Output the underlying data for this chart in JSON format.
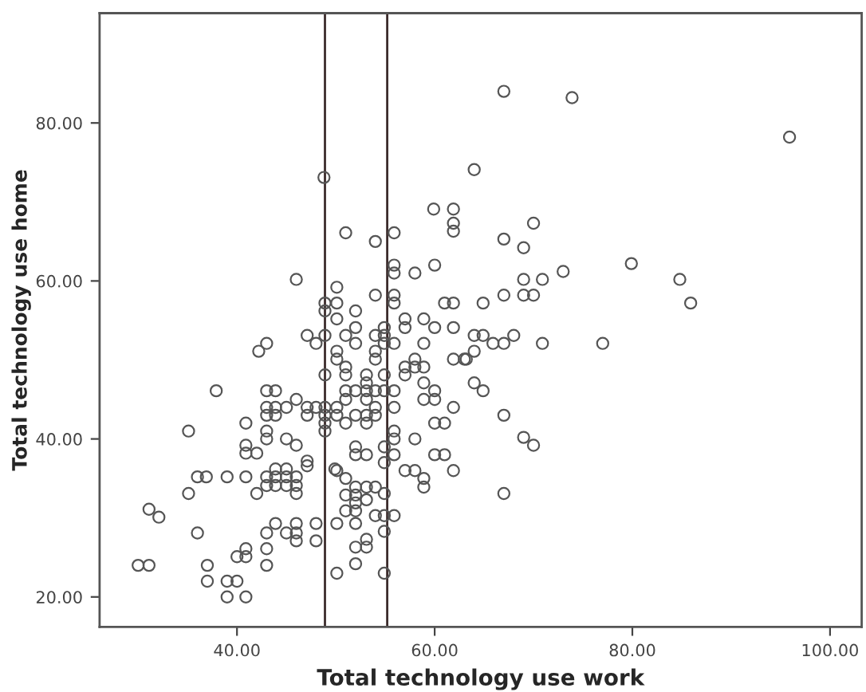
{
  "chart_data": {
    "type": "scatter",
    "xlabel": "Total technology use work",
    "ylabel": "Total technology use home",
    "xlim": [
      26.1,
      103.2
    ],
    "ylim": [
      16.2,
      93.9
    ],
    "xticks": [
      {
        "value": 40,
        "label": "40.00"
      },
      {
        "value": 60,
        "label": "60.00"
      },
      {
        "value": 80,
        "label": "80.00"
      },
      {
        "value": 100,
        "label": "100.00"
      }
    ],
    "yticks": [
      {
        "value": 20,
        "label": "20.00"
      },
      {
        "value": 40,
        "label": "40.00"
      },
      {
        "value": 60,
        "label": "60.00"
      },
      {
        "value": 80,
        "label": "80.00"
      }
    ],
    "grid": false,
    "legend": false,
    "marker": "circle",
    "ref_lines": [
      {
        "axis": "x",
        "value": 48.9,
        "color": "#3a2a2a"
      },
      {
        "axis": "x",
        "value": 55.2,
        "color": "#3a2a2a"
      }
    ],
    "series": [
      {
        "color": "#555555",
        "x": [
          48.8,
          67.0,
          73.9,
          95.9,
          64.0,
          51.0,
          59.9,
          61.9,
          61.9,
          61.9,
          54.0,
          55.9,
          46.0,
          55.9,
          55.9,
          58.0,
          60.0,
          50.1,
          48.9,
          48.9,
          50.1,
          52.0,
          54.0,
          55.9,
          55.9,
          61.0,
          61.9,
          70.0,
          67.0,
          69.0,
          69.0,
          70.9,
          73.0,
          79.9,
          84.8,
          85.9,
          64.9,
          67.0,
          69.0,
          70.0,
          64.0,
          64.9,
          65.9,
          67.0,
          68.0,
          70.9,
          77.0,
          64.0,
          63.2,
          64.0,
          64.9,
          67.0,
          69.0,
          70.0,
          67.0,
          43.0,
          42.2,
          47.1,
          48.0,
          48.9,
          37.9,
          43.0,
          43.9,
          43.0,
          43.9,
          43.0,
          43.9,
          46.0,
          45.0,
          47.1,
          47.1,
          48.0,
          48.9,
          48.9,
          48.9,
          48.9,
          35.1,
          40.9,
          43.0,
          43.0,
          40.9,
          40.9,
          42.0,
          45.0,
          46.0,
          47.1,
          36.0,
          36.9,
          39.0,
          40.9,
          43.0,
          43.9,
          45.0,
          46.0,
          43.0,
          43.9,
          45.0,
          46.0,
          46.0,
          43.9,
          45.0,
          42.0,
          35.1,
          31.1,
          32.1,
          36.0,
          43.0,
          43.9,
          45.0,
          46.0,
          46.0,
          46.0,
          43.0,
          40.9,
          40.9,
          40.0,
          30.0,
          31.1,
          37.0,
          43.0,
          37.0,
          39.0,
          40.0,
          39.0,
          40.9,
          48.0,
          48.0,
          50.1,
          50.1,
          52.0,
          49.9,
          50.1,
          52.0,
          57.0,
          57.0,
          58.9,
          60.0,
          61.9,
          51.0,
          52.0,
          54.0,
          54.9,
          54.9,
          54.9,
          55.9,
          58.9,
          50.1,
          50.1,
          54.0,
          54.0,
          51.0,
          51.0,
          57.0,
          58.0,
          58.0,
          58.9,
          57.0,
          61.9,
          63.0,
          48.9,
          53.1,
          54.9,
          58.9,
          51.0,
          52.0,
          53.1,
          53.1,
          54.0,
          54.9,
          55.9,
          51.0,
          53.1,
          58.9,
          60.0,
          60.0,
          50.1,
          50.1,
          51.0,
          52.0,
          53.1,
          53.1,
          54.0,
          54.0,
          55.9,
          61.9,
          60.0,
          61.0,
          55.9,
          55.9,
          58.0,
          52.0,
          52.0,
          53.1,
          54.9,
          54.9,
          55.9,
          57.0,
          58.0,
          58.9,
          58.9,
          60.0,
          61.0,
          61.9,
          50.1,
          51.0,
          52.0,
          53.1,
          54.0,
          52.0,
          52.0,
          51.0,
          51.0,
          52.0,
          53.1,
          54.0,
          54.9,
          55.9,
          54.9,
          53.1,
          53.1,
          52.0,
          52.0,
          54.9,
          54.9,
          47.1
        ],
        "values": [
          73.1,
          84.0,
          83.2,
          78.2,
          74.1,
          66.1,
          69.1,
          69.1,
          67.3,
          66.3,
          65.0,
          66.1,
          60.2,
          62.0,
          61.0,
          61.0,
          62.0,
          59.2,
          57.2,
          56.2,
          57.2,
          56.2,
          58.2,
          58.2,
          57.2,
          57.2,
          57.2,
          67.3,
          65.3,
          64.2,
          60.2,
          60.2,
          61.2,
          62.2,
          60.2,
          57.2,
          57.2,
          58.2,
          58.2,
          58.2,
          53.1,
          53.1,
          52.1,
          52.1,
          53.1,
          52.1,
          52.1,
          51.1,
          50.1,
          47.1,
          46.1,
          43.0,
          40.2,
          39.2,
          33.1,
          52.1,
          51.1,
          53.1,
          52.1,
          53.1,
          46.1,
          46.1,
          46.1,
          44.0,
          44.0,
          43.0,
          43.0,
          45.0,
          44.0,
          44.0,
          43.0,
          44.0,
          44.0,
          43.0,
          42.0,
          41.0,
          41.0,
          42.0,
          41.0,
          40.0,
          39.2,
          38.2,
          38.2,
          40.0,
          39.2,
          37.2,
          35.2,
          35.2,
          35.2,
          35.2,
          35.2,
          35.2,
          35.2,
          35.2,
          34.1,
          34.1,
          34.1,
          34.1,
          33.1,
          36.2,
          36.2,
          33.1,
          33.1,
          31.1,
          30.1,
          28.1,
          28.1,
          29.3,
          28.1,
          29.3,
          28.1,
          27.1,
          26.1,
          26.1,
          25.1,
          25.1,
          24.0,
          24.0,
          24.0,
          24.0,
          22.0,
          22.0,
          22.0,
          20.0,
          20.0,
          29.3,
          27.1,
          29.3,
          23.0,
          29.3,
          36.2,
          55.2,
          54.1,
          55.2,
          54.1,
          55.2,
          54.1,
          54.1,
          53.1,
          52.1,
          53.1,
          54.1,
          53.1,
          52.1,
          52.1,
          52.1,
          51.1,
          50.1,
          51.1,
          50.1,
          49.1,
          48.1,
          49.1,
          50.1,
          49.1,
          49.1,
          48.1,
          50.1,
          50.1,
          48.1,
          48.1,
          48.1,
          47.1,
          46.1,
          46.1,
          46.1,
          47.1,
          46.1,
          46.1,
          46.1,
          45.0,
          45.0,
          45.0,
          46.1,
          45.0,
          44.0,
          43.0,
          42.0,
          43.0,
          43.0,
          42.0,
          44.0,
          43.0,
          44.0,
          44.0,
          42.0,
          42.0,
          41.0,
          40.0,
          40.0,
          39.0,
          38.0,
          38.0,
          39.0,
          37.0,
          38.0,
          36.0,
          36.0,
          35.0,
          33.9,
          38.0,
          38.0,
          36.0,
          36.0,
          35.0,
          33.9,
          33.9,
          33.9,
          32.9,
          31.9,
          32.9,
          30.9,
          30.9,
          32.3,
          30.3,
          30.3,
          30.3,
          33.1,
          27.3,
          26.3,
          26.3,
          24.2,
          28.3,
          23.0,
          36.6
        ]
      }
    ]
  }
}
